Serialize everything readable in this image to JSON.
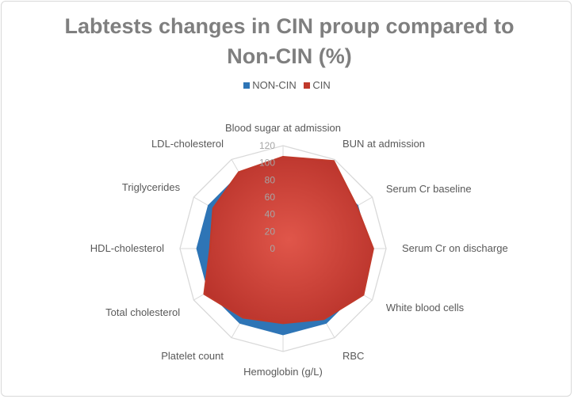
{
  "chart_data": {
    "type": "radar",
    "title": "Labtests changes in CIN proup compared to Non-CIN (%)",
    "categories": [
      "Blood sugar at admission",
      "BUN  at admission",
      "Serum Cr baseline",
      "Serum Cr on discharge",
      "White blood cells",
      "RBC",
      "Hemoglobin (g/L)",
      "Platelet count",
      "Total cholesterol",
      "HDL-cholesterol",
      "Triglycerides",
      "LDL-cholesterol"
    ],
    "ticks": [
      "0",
      "20",
      "40",
      "60",
      "80",
      "100",
      "120"
    ],
    "rlim": [
      0,
      120
    ],
    "grid": true,
    "legend_position": "top",
    "series": [
      {
        "name": "NON-CIN",
        "color": "#2e75b6",
        "values": [
          100,
          100,
          100,
          100,
          100,
          100,
          100,
          100,
          100,
          100,
          100,
          100
        ]
      },
      {
        "name": "CIN",
        "color": "#c0392b",
        "values": [
          107,
          118,
          99,
          105,
          108,
          95,
          87,
          93,
          106,
          85,
          94,
          103
        ]
      }
    ]
  }
}
